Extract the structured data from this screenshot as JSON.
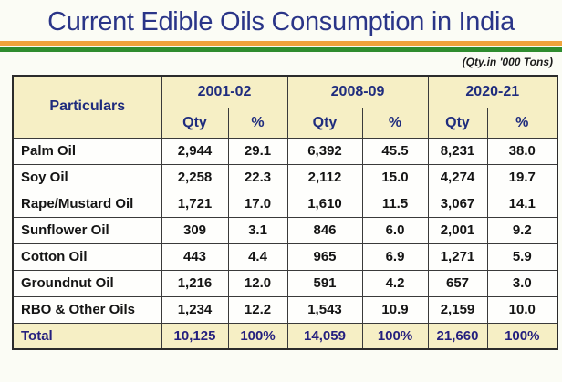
{
  "title": "Current Edible Oils Consumption in India",
  "unit_note": "(Qty.in '000 Tons)",
  "colors": {
    "title_navy": "#2A3588",
    "flag_orange": "#EFA33C",
    "flag_green": "#2E8C2E",
    "header_bg": "#F6EFC5",
    "header_text_navy": "#1F2C7E",
    "body_text": "#141414",
    "table_border": "#3A3A3A",
    "page_bg": "#FBFCF5"
  },
  "table": {
    "corner_header": "Particulars",
    "year_groups": [
      "2001-02",
      "2008-09",
      "2020-21"
    ],
    "sub_headers": [
      "Qty",
      "%"
    ],
    "rows": [
      {
        "name": "Palm Oil",
        "values": [
          "2,944",
          "29.1",
          "6,392",
          "45.5",
          "8,231",
          "38.0"
        ]
      },
      {
        "name": "Soy Oil",
        "values": [
          "2,258",
          "22.3",
          "2,112",
          "15.0",
          "4,274",
          "19.7"
        ]
      },
      {
        "name": "Rape/Mustard Oil",
        "values": [
          "1,721",
          "17.0",
          "1,610",
          "11.5",
          "3,067",
          "14.1"
        ]
      },
      {
        "name": "Sunflower Oil",
        "values": [
          "309",
          "3.1",
          "846",
          "6.0",
          "2,001",
          "9.2"
        ]
      },
      {
        "name": "Cotton Oil",
        "values": [
          "443",
          "4.4",
          "965",
          "6.9",
          "1,271",
          "5.9"
        ]
      },
      {
        "name": "Groundnut Oil",
        "values": [
          "1,216",
          "12.0",
          "591",
          "4.2",
          "657",
          "3.0"
        ]
      },
      {
        "name": "RBO & Other Oils",
        "values": [
          "1,234",
          "12.2",
          "1,543",
          "10.9",
          "2,159",
          "10.0"
        ]
      },
      {
        "name": "Total",
        "is_total": true,
        "values": [
          "10,125",
          "100%",
          "14,059",
          "100%",
          "21,660",
          "100%"
        ]
      }
    ]
  },
  "chart_data": {
    "type": "table",
    "title": "Current Edible Oils Consumption in India",
    "unit": "'000 Tons",
    "columns": [
      "Particulars",
      "2001-02 Qty",
      "2001-02 %",
      "2008-09 Qty",
      "2008-09 %",
      "2020-21 Qty",
      "2020-21 %"
    ],
    "rows": [
      [
        "Palm Oil",
        2944,
        29.1,
        6392,
        45.5,
        8231,
        38.0
      ],
      [
        "Soy Oil",
        2258,
        22.3,
        2112,
        15.0,
        4274,
        19.7
      ],
      [
        "Rape/Mustard Oil",
        1721,
        17.0,
        1610,
        11.5,
        3067,
        14.1
      ],
      [
        "Sunflower Oil",
        309,
        3.1,
        846,
        6.0,
        2001,
        9.2
      ],
      [
        "Cotton Oil",
        443,
        4.4,
        965,
        6.9,
        1271,
        5.9
      ],
      [
        "Groundnut Oil",
        1216,
        12.0,
        591,
        4.2,
        657,
        3.0
      ],
      [
        "RBO & Other Oils",
        1234,
        12.2,
        1543,
        10.9,
        2159,
        10.0
      ],
      [
        "Total",
        10125,
        "100%",
        14059,
        "100%",
        21660,
        "100%"
      ]
    ]
  }
}
